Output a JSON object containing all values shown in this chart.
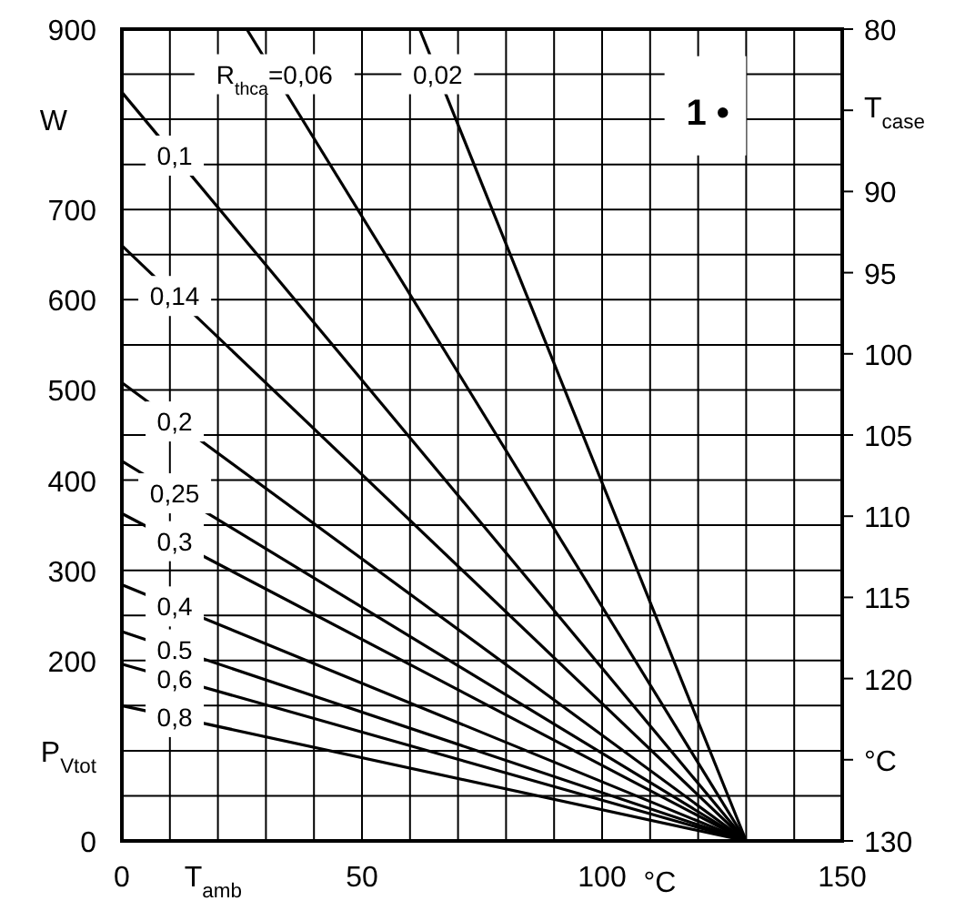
{
  "chart_data": {
    "type": "line",
    "xlabel": "T$_{amb}$",
    "ylabel": "P$_{Vtot}$",
    "y2label": "T$_{case}$",
    "annotations": [
      "W",
      "°C",
      "°C",
      "1 •"
    ],
    "xlim": [
      0,
      150
    ],
    "ylim": [
      0,
      900
    ],
    "y2lim": [
      130,
      80
    ],
    "xticks": [
      0,
      {
        "value": 10,
        "label": null
      },
      {
        "value": 20,
        "label": null
      },
      {
        "value": 30,
        "label": null
      },
      {
        "value": 40,
        "label": null
      },
      50,
      {
        "value": 60,
        "label": null
      },
      {
        "value": 70,
        "label": null
      },
      {
        "value": 80,
        "label": null
      },
      {
        "value": 90,
        "label": null
      },
      100,
      {
        "value": 110,
        "label": null
      },
      {
        "value": 120,
        "label": null
      },
      {
        "value": 130,
        "label": null
      },
      {
        "value": 140,
        "label": null
      },
      150
    ],
    "yticks": [
      0,
      {
        "value": 50,
        "label": null
      },
      {
        "value": 100,
        "label": null
      },
      {
        "value": 150,
        "label": null
      },
      200,
      {
        "value": 250,
        "label": null
      },
      300,
      {
        "value": 350,
        "label": null
      },
      400,
      {
        "value": 450,
        "label": null
      },
      500,
      {
        "value": 550,
        "label": null
      },
      600,
      {
        "value": 650,
        "label": null
      },
      700,
      {
        "value": 750,
        "label": null
      },
      {
        "value": 800,
        "label": null
      },
      {
        "value": 850,
        "label": null
      },
      900
    ],
    "y2ticks": [
      80,
      {
        "value": 85,
        "label": null
      },
      90,
      95,
      100,
      105,
      110,
      115,
      120,
      {
        "value": 125,
        "label": null
      },
      130
    ],
    "grid": true,
    "line_style": "solid",
    "series": [
      {
        "name": "R$_{thca}$=0,06",
        "color": "#000000",
        "x": [
          26,
          130
        ],
        "values": [
          900,
          0
        ]
      },
      {
        "name": "0,02",
        "color": "#000000",
        "x": [
          62,
          130
        ],
        "values": [
          900,
          0
        ]
      },
      {
        "name": "0,1",
        "color": "#000000",
        "x": [
          0,
          130
        ],
        "values": [
          830,
          0
        ]
      },
      {
        "name": "0,14",
        "color": "#000000",
        "x": [
          0,
          130
        ],
        "values": [
          660,
          0
        ]
      },
      {
        "name": "0,2",
        "color": "#000000",
        "x": [
          0,
          130
        ],
        "values": [
          508,
          0
        ]
      },
      {
        "name": "0,25",
        "color": "#000000",
        "x": [
          0,
          130
        ],
        "values": [
          421,
          0
        ]
      },
      {
        "name": "0,3",
        "color": "#000000",
        "x": [
          0,
          130
        ],
        "values": [
          363,
          0
        ]
      },
      {
        "name": "0,4",
        "color": "#000000",
        "x": [
          0,
          130
        ],
        "values": [
          284,
          0
        ]
      },
      {
        "name": "0,5",
        "color": "#000000",
        "x": [
          0,
          130
        ],
        "values": [
          232,
          0
        ]
      },
      {
        "name": "0,6",
        "color": "#000000",
        "x": [
          0,
          130
        ],
        "values": [
          196,
          0
        ]
      },
      {
        "name": "0,8",
        "color": "#000000",
        "x": [
          0,
          130
        ],
        "values": [
          150,
          0
        ]
      }
    ]
  }
}
